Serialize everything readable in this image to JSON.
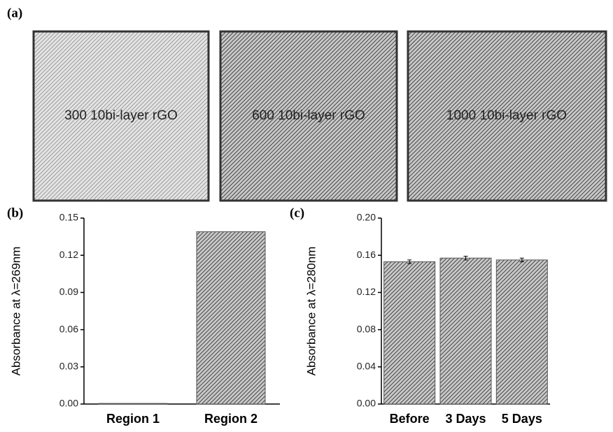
{
  "panels": [
    "(a)",
    "(b)",
    "(c)"
  ],
  "photos": [
    "300 10bi-layer rGO",
    "600 10bi-layer rGO",
    "1000 10bi-layer rGO"
  ],
  "chart_data": [
    {
      "type": "bar",
      "ylabel": "Absorbance at λ=269nm",
      "categories": [
        "Region 1",
        "Region 2"
      ],
      "values": [
        0.0005,
        0.139
      ],
      "color": "#555555",
      "ylim": [
        0,
        0.15
      ],
      "yticks": [
        {
          "value": 0,
          "label": "0.00"
        },
        0.03,
        0.06,
        0.09,
        0.12,
        0.15
      ]
    },
    {
      "type": "bar",
      "ylabel": "Absorbance at λ=280nm",
      "categories": [
        "Before",
        "3 Days",
        "5 Days"
      ],
      "values": [
        0.153,
        0.157,
        0.155
      ],
      "errors": [
        0.002,
        0.002,
        0.002
      ],
      "color": "#555555",
      "ylim": [
        0,
        0.2
      ],
      "yticks": [
        {
          "value": 0,
          "label": "0.00"
        },
        0.04,
        0.08,
        0.12,
        0.16,
        {
          "value": 0.2,
          "label": "0.20"
        }
      ]
    }
  ]
}
